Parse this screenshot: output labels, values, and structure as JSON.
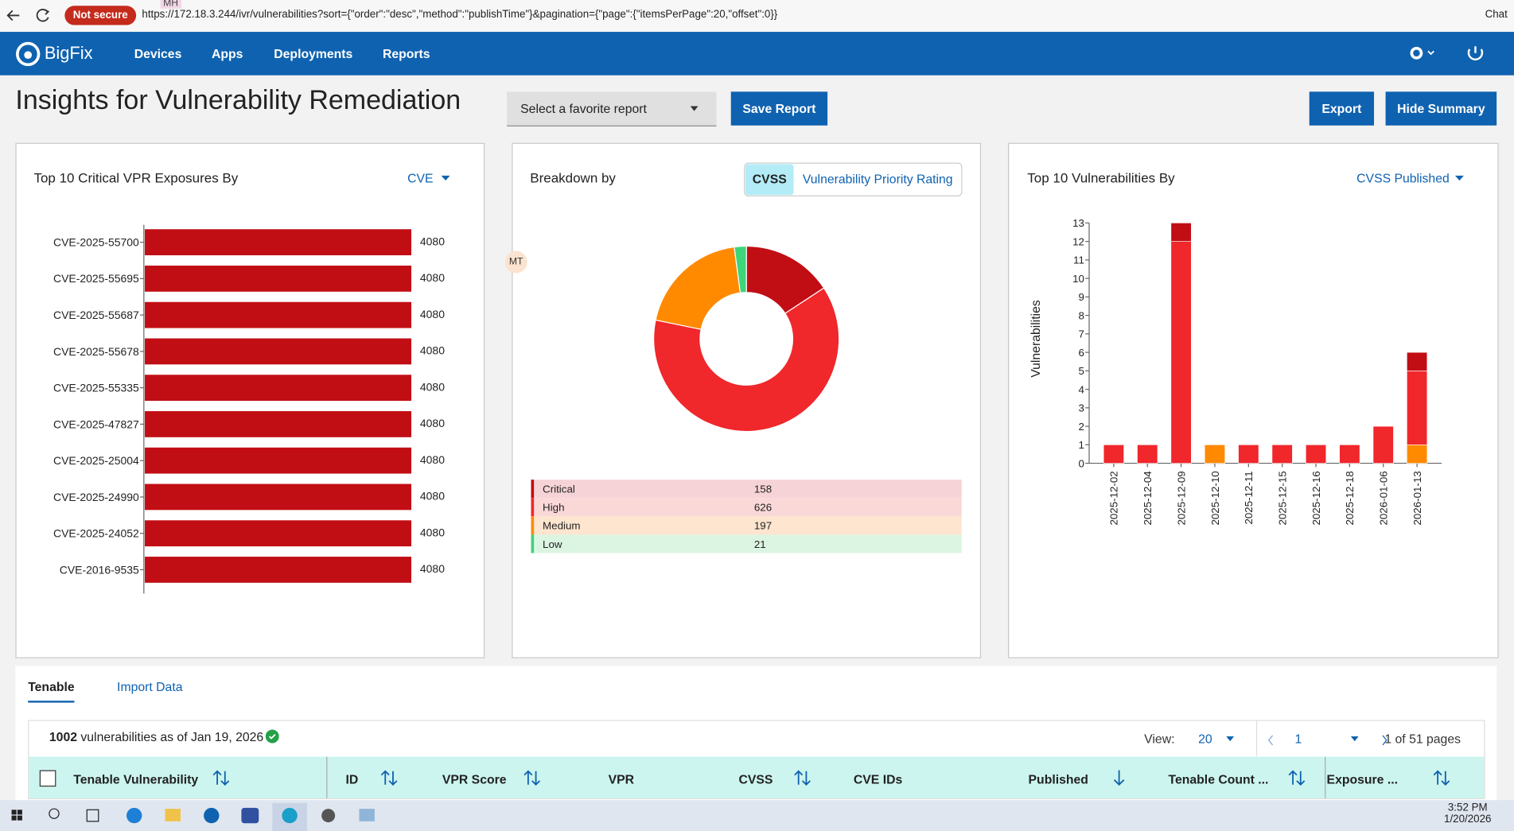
{
  "browser": {
    "security": "Not secure",
    "url": "https://172.18.3.244/ivr/vulnerabilities?sort={\"order\":\"desc\",\"method\":\"publishTime\"}&pagination={\"page\":{\"itemsPerPage\":20,\"offset\":0}}",
    "profile": "MH",
    "chat": "Chat"
  },
  "nav": {
    "brand": "BigFix",
    "items": [
      "Devices",
      "Apps",
      "Deployments",
      "Reports"
    ]
  },
  "page": {
    "title": "Insights for Vulnerability Remediation",
    "favorite": "Select a favorite report",
    "save": "Save Report",
    "export": "Export",
    "hide": "Hide Summary",
    "cursor_badge": "MT"
  },
  "chart_data": [
    {
      "type": "hbar",
      "title": "Top 10 Critical VPR Exposures By",
      "selector": "CVE",
      "categories": [
        "CVE-2025-55700",
        "CVE-2025-55695",
        "CVE-2025-55687",
        "CVE-2025-55678",
        "CVE-2025-55335",
        "CVE-2025-47827",
        "CVE-2025-25004",
        "CVE-2025-24990",
        "CVE-2025-24052",
        "CVE-2016-9535"
      ],
      "values": [
        4080,
        4080,
        4080,
        4080,
        4080,
        4080,
        4080,
        4080,
        4080,
        4080
      ],
      "color": "#c10e14"
    },
    {
      "type": "donut",
      "title": "Breakdown by",
      "toggle": [
        "CVSS",
        "Vulnerability Priority Rating"
      ],
      "categories": [
        "Critical",
        "High",
        "Medium",
        "Low"
      ],
      "values": [
        158,
        626,
        197,
        21
      ],
      "colors": [
        "#c10e14",
        "#f0272b",
        "#ff8a00",
        "#3ed47a"
      ],
      "row_colors": [
        "#f6d3d6",
        "#fbd8d8",
        "#fde5cf",
        "#dcf5e3"
      ]
    },
    {
      "type": "stacked-bar",
      "title": "Top 10 Vulnerabilities By",
      "selector": "CVSS Published",
      "y_label": "Vulnerabilities",
      "categories": [
        "2025-12-02",
        "2025-12-04",
        "2025-12-09",
        "2025-12-10",
        "2025-12-11",
        "2025-12-15",
        "2025-12-16",
        "2025-12-18",
        "2026-01-06",
        "2026-01-13"
      ],
      "series": [
        {
          "color": "#ff8a00",
          "values": [
            0,
            0,
            0,
            1,
            0,
            0,
            0,
            0,
            0,
            1
          ]
        },
        {
          "color": "#f0272b",
          "values": [
            1,
            1,
            12,
            0,
            1,
            1,
            1,
            1,
            2,
            4
          ]
        },
        {
          "color": "#c10e14",
          "values": [
            0,
            0,
            1,
            0,
            0,
            0,
            0,
            0,
            0,
            1
          ]
        }
      ],
      "ylim": [
        0,
        13
      ],
      "yticks": [
        0,
        1,
        2,
        3,
        4,
        5,
        6,
        7,
        8,
        9,
        10,
        11,
        12,
        13
      ]
    }
  ],
  "tabs": [
    "Tenable",
    "Import Data"
  ],
  "table": {
    "count": "1002",
    "as_of": "vulnerabilities as of Jan 19, 2026",
    "view_label": "View:",
    "view": "20",
    "page": "1",
    "pages": "1 of 51 pages",
    "columns": [
      "Tenable Vulnerability",
      "ID",
      "VPR Score",
      "VPR",
      "CVSS",
      "CVE IDs",
      "Published",
      "Tenable Count ...",
      "Exposure ..."
    ]
  },
  "taskbar": {
    "time": "3:52 PM",
    "date": "1/20/2026"
  }
}
